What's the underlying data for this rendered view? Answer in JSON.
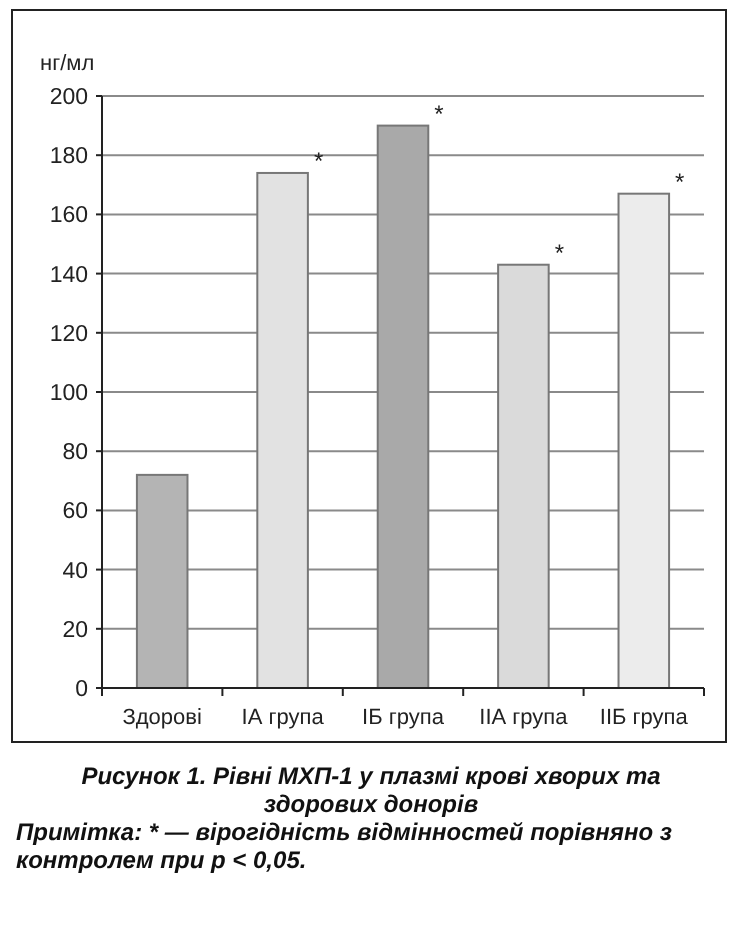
{
  "chart_data": {
    "type": "bar",
    "title": "Рисунок 1. Рівні МХП-1 у плазмі крові хворих та здорових донорів",
    "ylabel": "нг/мл",
    "categories": [
      "Здорові",
      "IА група",
      "IБ група",
      "IIА група",
      "IIБ група"
    ],
    "values": [
      72,
      174,
      190,
      143,
      167
    ],
    "colors": [
      "#b4b4b4",
      "#e2e2e2",
      "#a9a9a9",
      "#dadada",
      "#ececec"
    ],
    "ylim": [
      0,
      200
    ],
    "yticks": [
      0,
      20,
      40,
      60,
      80,
      100,
      120,
      140,
      160,
      180,
      200
    ],
    "grid": "y",
    "annotations": [
      {
        "text": "*",
        "x": "IА група",
        "y": 174
      },
      {
        "text": "*",
        "x": "IБ група",
        "y": 190
      },
      {
        "text": "*",
        "x": "IIА група",
        "y": 143
      },
      {
        "text": "*",
        "x": "IIБ група",
        "y": 167
      },
      "Примітка: * — вірогідність відмінностей порівняно з контролем при р < 0,05."
    ]
  }
}
